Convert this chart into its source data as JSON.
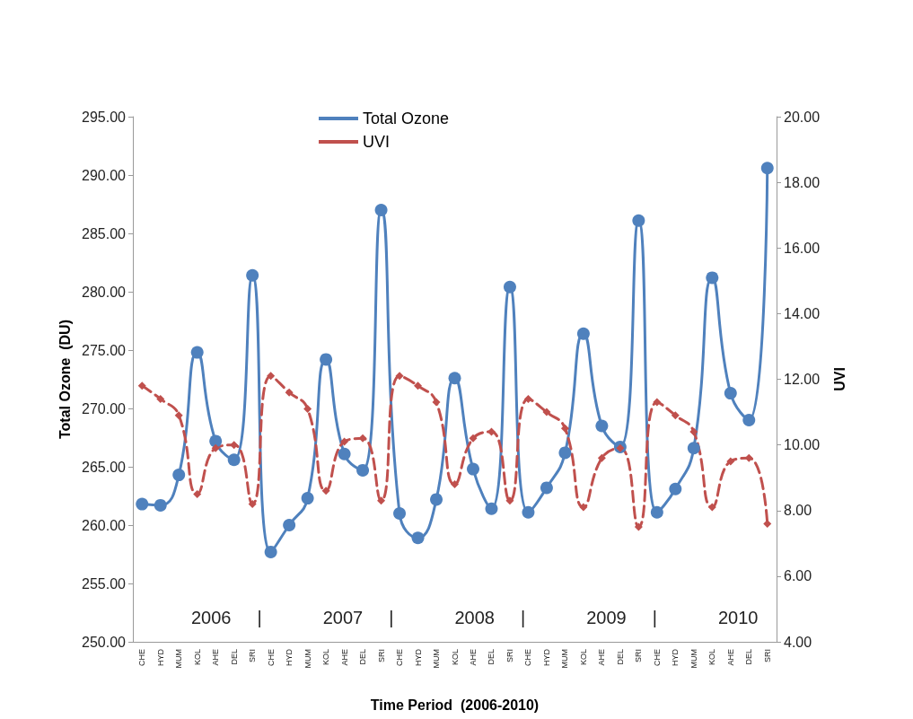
{
  "chart_data": {
    "type": "line",
    "xlabel": "Time Period  (2006-2010)",
    "ylabel": "Total Ozone  (DU)",
    "y2label": "UVI",
    "categories": [
      "CHE",
      "HYD",
      "MUM",
      "KOL",
      "AHE",
      "DEL",
      "SRI",
      "CHE",
      "HYD",
      "MUM",
      "KOL",
      "AHE",
      "DEL",
      "SRI",
      "CHE",
      "HYD",
      "MUM",
      "KOL",
      "AHE",
      "DEL",
      "SRI",
      "CHE",
      "HYD",
      "MUM",
      "KOL",
      "AHE",
      "DEL",
      "SRI",
      "CHE",
      "HYD",
      "MUM",
      "KOL",
      "AHE",
      "DEL",
      "SRI"
    ],
    "series": [
      {
        "name": "Total Ozone",
        "color": "#4f81bd",
        "marker": "circle",
        "line_style": "solid",
        "values": [
          261.8,
          261.7,
          264.3,
          274.8,
          267.2,
          265.6,
          281.4,
          257.7,
          260.0,
          262.3,
          274.2,
          266.1,
          264.7,
          287.0,
          261.0,
          258.9,
          262.2,
          272.6,
          264.8,
          261.4,
          280.4,
          261.1,
          263.2,
          266.2,
          276.4,
          268.5,
          266.7,
          286.1,
          261.1,
          263.1,
          266.6,
          281.2,
          271.3,
          269.0,
          290.6
        ]
      },
      {
        "name": "UVI",
        "color": "#c0504d",
        "marker": "diamond",
        "line_style": "dashed",
        "axis": "y2",
        "values": [
          11.8,
          11.4,
          10.9,
          8.5,
          9.9,
          10.0,
          8.2,
          12.1,
          11.6,
          11.1,
          8.6,
          10.1,
          10.2,
          8.3,
          12.1,
          11.8,
          11.3,
          8.8,
          10.2,
          10.4,
          8.3,
          11.4,
          11.0,
          10.5,
          8.1,
          9.6,
          9.9,
          7.5,
          11.3,
          10.9,
          10.4,
          8.1,
          9.5,
          9.6,
          7.6
        ]
      }
    ],
    "ylim": [
      250,
      295
    ],
    "yticks": [
      {
        "value": 250,
        "label": "250.00"
      },
      {
        "value": 255,
        "label": "255.00"
      },
      {
        "value": 260,
        "label": "260.00"
      },
      {
        "value": 265,
        "label": "265.00"
      },
      {
        "value": 270,
        "label": "270.00"
      },
      {
        "value": 275,
        "label": "275.00"
      },
      {
        "value": 280,
        "label": "280.00"
      },
      {
        "value": 285,
        "label": "285.00"
      },
      {
        "value": 290,
        "label": "290.00"
      },
      {
        "value": 295,
        "label": "295.00"
      }
    ],
    "y2lim": [
      4,
      20
    ],
    "y2ticks": [
      {
        "value": 4,
        "label": "4.00"
      },
      {
        "value": 6,
        "label": "6.00"
      },
      {
        "value": 8,
        "label": "8.00"
      },
      {
        "value": 10,
        "label": "10.00"
      },
      {
        "value": 12,
        "label": "12.00"
      },
      {
        "value": 14,
        "label": "14.00"
      },
      {
        "value": 16,
        "label": "16.00"
      },
      {
        "value": 18,
        "label": "18.00"
      },
      {
        "value": 20,
        "label": "20.00"
      }
    ],
    "annotations": [
      "2006",
      "|",
      "2007",
      "|",
      "2008",
      "|",
      "2009",
      "|",
      "2010"
    ],
    "grid": false,
    "legend": "top"
  }
}
